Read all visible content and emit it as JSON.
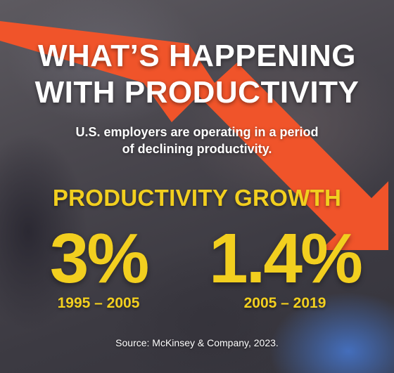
{
  "headline": {
    "line1": "WHAT’S HAPPENING",
    "line2": "WITH PRODUCTIVITY"
  },
  "subheadline": {
    "line1": "U.S. employers are operating in a period",
    "line2": "of declining productivity."
  },
  "section_title": "PRODUCTIVITY GROWTH",
  "stats": [
    {
      "value": "3%",
      "period": "1995 – 2005"
    },
    {
      "value": "1.4%",
      "period": "2005 – 2019"
    }
  ],
  "source": "Source: McKinsey & Company, 2023.",
  "colors": {
    "arrow": "#f0542a",
    "accent_yellow": "#f2cf1f",
    "text_white": "#ffffff"
  },
  "icons": {
    "arrow": "declining-trend-arrow"
  }
}
